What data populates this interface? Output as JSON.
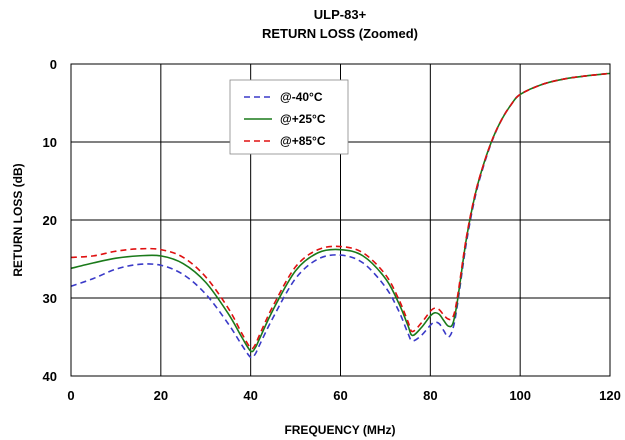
{
  "chart_data": {
    "type": "line",
    "title": "ULP-83+",
    "subtitle": "RETURN LOSS (Zoomed)",
    "xlabel": "FREQUENCY (MHz)",
    "ylabel": "RETURN LOSS (dB)",
    "xlim": [
      0,
      120
    ],
    "ylim": [
      0,
      40
    ],
    "y_inverted": true,
    "grid": true,
    "legend_position": "top-center-left",
    "x_ticks": [
      "0",
      "20",
      "40",
      "60",
      "80",
      "100",
      "120"
    ],
    "y_ticks": [
      "0",
      "10",
      "20",
      "30",
      "40"
    ],
    "x_tick_values": [
      0,
      20,
      40,
      60,
      80,
      100,
      120
    ],
    "y_tick_values": [
      0,
      10,
      20,
      30,
      40
    ],
    "series": [
      {
        "name": "@-40°C",
        "color": "#3a3ac8",
        "dash": "dashed",
        "x": [
          0,
          5,
          10,
          15,
          20,
          25,
          30,
          35,
          38,
          40,
          41,
          42,
          45,
          50,
          55,
          60,
          65,
          70,
          73,
          75,
          76,
          78,
          80,
          81,
          82,
          83,
          84,
          85,
          86,
          88,
          90,
          92,
          94,
          96,
          98,
          100,
          105,
          110,
          115,
          120
        ],
        "y": [
          28.5,
          27.5,
          26.3,
          25.7,
          25.8,
          27.0,
          29.5,
          33.3,
          36.0,
          37.6,
          37.2,
          36.0,
          32.5,
          27.5,
          25.0,
          24.5,
          25.5,
          28.6,
          31.7,
          34.5,
          35.5,
          34.8,
          33.5,
          33.1,
          33.3,
          34.2,
          35.0,
          34.0,
          31.0,
          23.0,
          17.0,
          12.8,
          9.5,
          7.0,
          5.2,
          3.9,
          2.6,
          1.9,
          1.5,
          1.2
        ]
      },
      {
        "name": "@+25°C",
        "color": "#1a7a1a",
        "dash": "solid",
        "x": [
          0,
          5,
          10,
          15,
          20,
          25,
          30,
          35,
          38,
          40,
          41,
          42,
          45,
          50,
          55,
          60,
          65,
          70,
          73,
          75,
          76,
          78,
          80,
          81,
          82,
          83,
          84,
          85,
          86,
          88,
          90,
          92,
          94,
          96,
          98,
          100,
          105,
          110,
          115,
          120
        ],
        "y": [
          26.2,
          25.5,
          24.9,
          24.6,
          24.6,
          25.6,
          28.0,
          32.0,
          35.0,
          36.8,
          36.4,
          35.2,
          31.5,
          26.5,
          24.2,
          23.8,
          24.6,
          27.5,
          30.7,
          33.5,
          34.8,
          33.8,
          32.3,
          31.9,
          32.1,
          32.9,
          33.6,
          33.3,
          30.5,
          22.5,
          16.7,
          12.6,
          9.4,
          7.0,
          5.2,
          3.9,
          2.6,
          1.9,
          1.5,
          1.2
        ]
      },
      {
        "name": "@+85°C",
        "color": "#e01010",
        "dash": "dashed",
        "x": [
          0,
          5,
          10,
          15,
          20,
          25,
          30,
          35,
          38,
          40,
          41,
          42,
          45,
          50,
          55,
          60,
          65,
          70,
          73,
          75,
          76,
          78,
          80,
          81,
          82,
          83,
          84,
          85,
          86,
          88,
          90,
          92,
          94,
          96,
          98,
          100,
          105,
          110,
          115,
          120
        ],
        "y": [
          24.8,
          24.6,
          24.0,
          23.7,
          23.8,
          24.8,
          27.3,
          31.3,
          34.5,
          36.4,
          36.0,
          34.7,
          31.0,
          26.0,
          23.8,
          23.4,
          24.2,
          27.0,
          30.2,
          33.0,
          34.3,
          33.2,
          31.7,
          31.3,
          31.5,
          32.2,
          32.7,
          32.5,
          30.0,
          22.3,
          16.6,
          12.6,
          9.4,
          7.0,
          5.2,
          3.9,
          2.6,
          1.9,
          1.5,
          1.2
        ]
      }
    ]
  }
}
